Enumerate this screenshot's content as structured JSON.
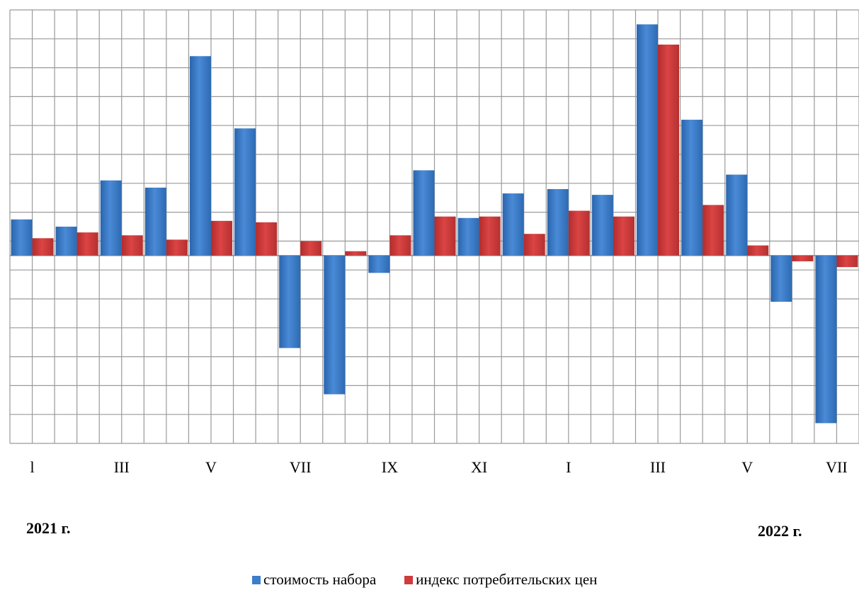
{
  "chart_data": {
    "type": "bar",
    "categories": [
      "I-2021",
      "II-2021",
      "III-2021",
      "IV-2021",
      "V-2021",
      "VI-2021",
      "VII-2021",
      "VIII-2021",
      "IX-2021",
      "X-2021",
      "XI-2021",
      "XII-2021",
      "I-2022",
      "II-2022",
      "III-2022",
      "IV-2022",
      "V-2022",
      "VI-2022",
      "VII-2022"
    ],
    "tick_labels": [
      "l",
      "",
      "III",
      "",
      "V",
      "",
      "VII",
      "",
      "IX",
      "",
      "XI",
      "",
      "I",
      "",
      "III",
      "",
      "V",
      "",
      "VII"
    ],
    "series": [
      {
        "name": "стоимость набора",
        "color": "#3d7dca",
        "values": [
          1.25,
          1.0,
          2.6,
          2.35,
          6.9,
          4.4,
          -3.2,
          -4.8,
          -0.6,
          2.95,
          1.3,
          2.15,
          2.3,
          2.1,
          8.0,
          4.7,
          2.8,
          -1.6,
          -5.8
        ]
      },
      {
        "name": "индекс потребительских цен",
        "color": "#d03c3c",
        "values": [
          0.6,
          0.8,
          0.7,
          0.55,
          1.2,
          1.15,
          0.5,
          0.15,
          0.7,
          1.35,
          1.35,
          0.75,
          1.55,
          1.35,
          7.3,
          1.75,
          0.35,
          -0.2,
          -0.4
        ]
      }
    ],
    "ylim": [
      -6.5,
      8.5
    ],
    "ygrid_step": 1,
    "grid": true,
    "legend_position": "bottom-center",
    "year_labels": [
      "2021 г.",
      "2022 г."
    ],
    "title": "",
    "xlabel": "",
    "ylabel": ""
  }
}
